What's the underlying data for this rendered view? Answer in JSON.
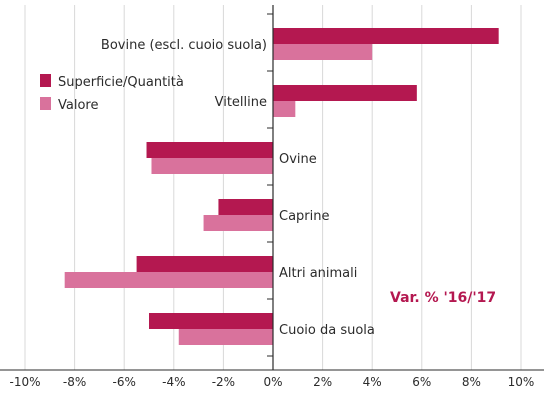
{
  "chart_data": {
    "type": "bar",
    "orientation": "horizontal",
    "categories": [
      "Bovine (escl. cuoio suola)",
      "Vitelline",
      "Ovine",
      "Caprine",
      "Altri animali",
      "Cuoio da suola"
    ],
    "series": [
      {
        "name": "Superficie/Quantità",
        "color": "#b41850",
        "values": [
          9.1,
          5.8,
          -5.1,
          -2.2,
          -5.5,
          -5.0
        ]
      },
      {
        "name": "Valore",
        "color": "#d9729c",
        "values": [
          4.0,
          0.9,
          -4.9,
          -2.8,
          -8.4,
          -3.8
        ]
      }
    ],
    "xlim": [
      -10,
      10
    ],
    "xticks": [
      -10,
      -8,
      -6,
      -4,
      -2,
      0,
      2,
      4,
      6,
      8,
      10
    ],
    "xtick_labels": [
      "-10%",
      "-8%",
      "-6%",
      "-4%",
      "-2%",
      "0%",
      "2%",
      "4%",
      "6%",
      "8%",
      "10%"
    ],
    "grid": "vertical",
    "legend_position": "top-left",
    "annotation": "Var. % '16/'17"
  }
}
